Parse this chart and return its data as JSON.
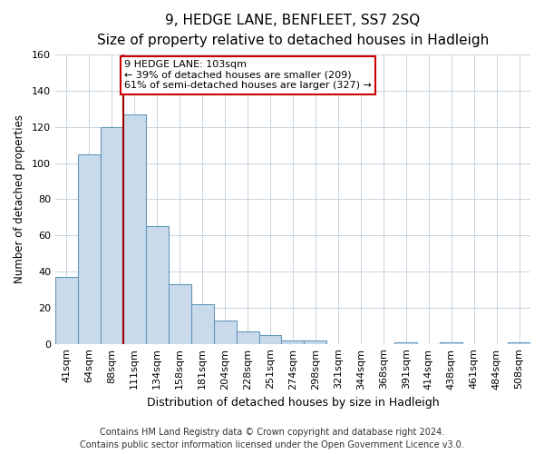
{
  "title": "9, HEDGE LANE, BENFLEET, SS7 2SQ",
  "subtitle": "Size of property relative to detached houses in Hadleigh",
  "xlabel": "Distribution of detached houses by size in Hadleigh",
  "ylabel": "Number of detached properties",
  "bar_labels": [
    "41sqm",
    "64sqm",
    "88sqm",
    "111sqm",
    "134sqm",
    "158sqm",
    "181sqm",
    "204sqm",
    "228sqm",
    "251sqm",
    "274sqm",
    "298sqm",
    "321sqm",
    "344sqm",
    "368sqm",
    "391sqm",
    "414sqm",
    "438sqm",
    "461sqm",
    "484sqm",
    "508sqm"
  ],
  "bar_values": [
    37,
    105,
    120,
    127,
    65,
    33,
    22,
    13,
    7,
    5,
    2,
    2,
    0,
    0,
    0,
    1,
    0,
    1,
    0,
    0,
    1
  ],
  "bar_color": "#c9daea",
  "bar_edge_color": "#6699bb",
  "bg_color": "#ffffff",
  "plot_bg_color": "#ffffff",
  "grid_color": "#c8d4e0",
  "red_line_x": 3,
  "annotation_line1": "9 HEDGE LANE: 103sqm",
  "annotation_line2": "← 39% of detached houses are smaller (209)",
  "annotation_line3": "61% of semi-detached houses are larger (327) →",
  "annotation_box_color": "#ffffff",
  "annotation_box_edge": "#cc0000",
  "ylim": [
    0,
    160
  ],
  "yticks": [
    0,
    20,
    40,
    60,
    80,
    100,
    120,
    140,
    160
  ],
  "footer": "Contains HM Land Registry data © Crown copyright and database right 2024.\nContains public sector information licensed under the Open Government Licence v3.0.",
  "title_fontsize": 11,
  "subtitle_fontsize": 9.5,
  "xlabel_fontsize": 9,
  "ylabel_fontsize": 8.5,
  "tick_fontsize": 8,
  "footer_fontsize": 7,
  "annotation_fontsize": 8
}
